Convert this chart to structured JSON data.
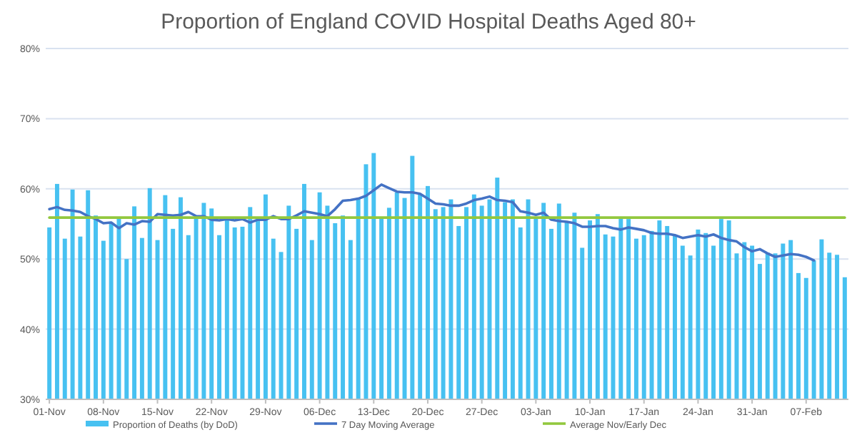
{
  "chart_data": {
    "type": "bar",
    "title": "Proportion of England COVID Hospital Deaths Aged 80+",
    "categories": [
      "01-Nov",
      null,
      null,
      null,
      null,
      null,
      null,
      "08-Nov",
      null,
      null,
      null,
      null,
      null,
      null,
      "15-Nov",
      null,
      null,
      null,
      null,
      null,
      null,
      "22-Nov",
      null,
      null,
      null,
      null,
      null,
      null,
      "29-Nov",
      null,
      null,
      null,
      null,
      null,
      null,
      "06-Dec",
      null,
      null,
      null,
      null,
      null,
      null,
      "13-Dec",
      null,
      null,
      null,
      null,
      null,
      null,
      "20-Dec",
      null,
      null,
      null,
      null,
      null,
      null,
      "27-Dec",
      null,
      null,
      null,
      null,
      null,
      null,
      "03-Jan",
      null,
      null,
      null,
      null,
      null,
      null,
      "10-Jan",
      null,
      null,
      null,
      null,
      null,
      null,
      "17-Jan",
      null,
      null,
      null,
      null,
      null,
      null,
      "24-Jan",
      null,
      null,
      null,
      null,
      null,
      null,
      "31-Jan",
      null,
      null,
      null,
      null,
      null,
      null,
      "07-Feb",
      null,
      null,
      null,
      null,
      null
    ],
    "series": [
      {
        "name": "Proportion of Deaths (by DoD)",
        "color": "#47c1f1",
        "values": [
          54.5,
          60.7,
          52.9,
          59.9,
          53.2,
          59.8,
          56.2,
          52.6,
          55.2,
          55.9,
          50,
          57.5,
          53,
          60.1,
          52.7,
          59.1,
          54.3,
          58.8,
          53.4,
          55.9,
          58,
          57.2,
          53.4,
          55.6,
          54.5,
          54.6,
          57.4,
          55.4,
          59.2,
          52.9,
          51,
          57.6,
          54.3,
          60.7,
          52.7,
          59.5,
          57.6,
          55.1,
          56.2,
          52.7,
          58.7,
          63.5,
          65.1,
          55.8,
          57.3,
          59.5,
          58.7,
          64.7,
          59.2,
          60.4,
          57.1,
          57.4,
          58.5,
          54.7,
          57.4,
          59.2,
          57.6,
          58.5,
          61.6,
          58.1,
          58.5,
          54.5,
          58.5,
          55.9,
          58,
          54.3,
          57.9,
          55.2,
          56.6,
          51.6,
          55.5,
          56.4,
          53.5,
          53.2,
          55.9,
          55.7,
          52.9,
          53.4,
          54,
          55.5,
          54.7,
          53.4,
          51.9,
          50.5,
          54.2,
          53.7,
          51.9,
          55.7,
          55.5,
          50.8,
          52.4,
          51.9,
          49.3,
          50.9,
          50.8,
          52.2,
          52.7,
          48,
          47.3,
          49.8,
          52.8,
          50.9,
          50.6,
          47.4
        ]
      },
      {
        "name": "7 Day Moving Average",
        "type": "line",
        "color": "#4472c4",
        "values": [
          57.1,
          57.4,
          57,
          56.9,
          56.7,
          56.1,
          55.7,
          55.1,
          55.2,
          54.4,
          55.1,
          54.9,
          55.4,
          55.3,
          56.4,
          56.3,
          56.2,
          56.3,
          56.7,
          56.1,
          56.1,
          55.6,
          55.5,
          55.7,
          55.5,
          55.7,
          55.2,
          55.6,
          55.6,
          56.1,
          55.7,
          55.7,
          56.2,
          56.8,
          56.6,
          56.4,
          56.1,
          57.1,
          58.3,
          58.4,
          58.6,
          59,
          59.8,
          60.6,
          60.1,
          59.6,
          59.5,
          59.5,
          59.3,
          58.6,
          57.9,
          57.8,
          57.6,
          57.6,
          57.9,
          58.4,
          58.6,
          58.9,
          58.4,
          58.3,
          58.1,
          56.8,
          56.6,
          56.3,
          56.6,
          55.6,
          55.4,
          55.3,
          55.1,
          54.6,
          54.6,
          54.7,
          54.7,
          54.4,
          54.2,
          54.5,
          54.3,
          54.1,
          53.7,
          53.6,
          53.6,
          53.4,
          53,
          53.2,
          53.4,
          53.2,
          53.5,
          53,
          52.7,
          52.5,
          51.7,
          51.1,
          51.4,
          50.8,
          50.3,
          50.5,
          50.7,
          50.6,
          50.3,
          49.8,
          null,
          null,
          null,
          null
        ]
      },
      {
        "name": "Average Nov/Early Dec",
        "type": "line",
        "color": "#92c83e",
        "values": [
          55.9,
          55.9,
          55.9,
          55.9,
          55.9,
          55.9,
          55.9,
          55.9,
          55.9,
          55.9,
          55.9,
          55.9,
          55.9,
          55.9,
          55.9,
          55.9,
          55.9,
          55.9,
          55.9,
          55.9,
          55.9,
          55.9,
          55.9,
          55.9,
          55.9,
          55.9,
          55.9,
          55.9,
          55.9,
          55.9,
          55.9,
          55.9,
          55.9,
          55.9,
          55.9,
          55.9,
          55.9,
          55.9,
          55.9,
          55.9,
          55.9,
          55.9,
          55.9,
          55.9,
          55.9,
          55.9,
          55.9,
          55.9,
          55.9,
          55.9,
          55.9,
          55.9,
          55.9,
          55.9,
          55.9,
          55.9,
          55.9,
          55.9,
          55.9,
          55.9,
          55.9,
          55.9,
          55.9,
          55.9,
          55.9,
          55.9,
          55.9,
          55.9,
          55.9,
          55.9,
          55.9,
          55.9,
          55.9,
          55.9,
          55.9,
          55.9,
          55.9,
          55.9,
          55.9,
          55.9,
          55.9,
          55.9,
          55.9,
          55.9,
          55.9,
          55.9,
          55.9,
          55.9,
          55.9,
          55.9,
          55.9,
          55.9,
          55.9,
          55.9,
          55.9,
          55.9,
          55.9,
          55.9,
          55.9,
          55.9,
          55.9,
          55.9,
          55.9,
          55.9
        ]
      }
    ],
    "ylim": [
      30,
      80
    ],
    "yticks": [
      {
        "value": 30,
        "label": "30%"
      },
      {
        "value": 40,
        "label": "40%"
      },
      {
        "value": 50,
        "label": "50%"
      },
      {
        "value": 60,
        "label": "60%"
      },
      {
        "value": 70,
        "label": "70%"
      },
      {
        "value": 80,
        "label": "80%"
      }
    ],
    "grid": "y",
    "legend": "bottom"
  }
}
